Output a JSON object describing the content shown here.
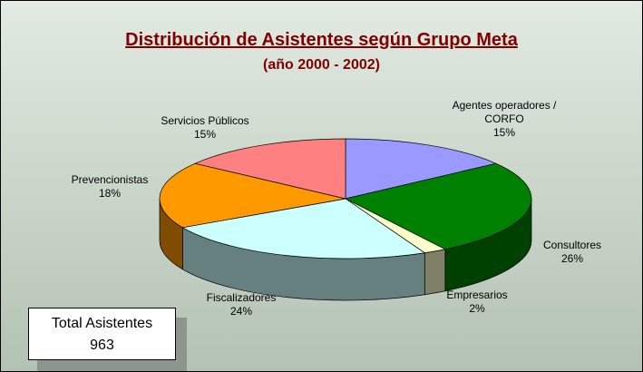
{
  "chart_data": {
    "type": "pie3d",
    "title": "Distribución de Asistentes según Grupo Meta",
    "subtitle": "(año 2000 - 2002)",
    "categories": [
      "Agentes operadores / CORFO",
      "Consultores",
      "Empresarios",
      "Fiscalizadores",
      "Prevencionistas",
      "Servicios Públicos"
    ],
    "values": [
      15,
      26,
      2,
      24,
      18,
      15
    ],
    "value_labels": [
      "15%",
      "26%",
      "2%",
      "24%",
      "18%",
      "15%"
    ],
    "colors": [
      "#9999ff",
      "#008000",
      "#ffffcc",
      "#ccffff",
      "#ff9900",
      "#ff8080"
    ],
    "total_label": "Total Asistentes",
    "total_value": 963
  }
}
